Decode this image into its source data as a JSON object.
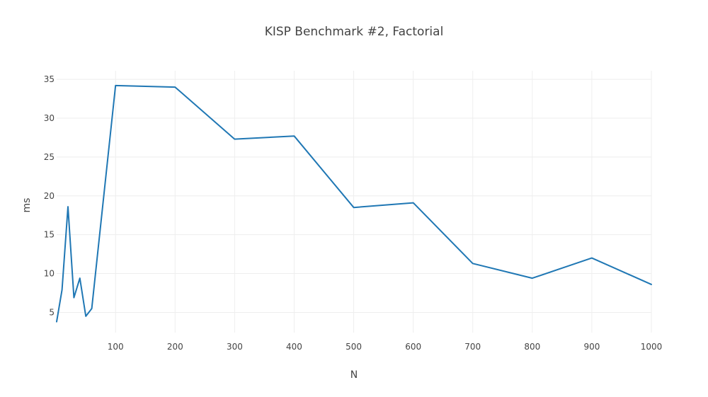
{
  "chart_data": {
    "type": "line",
    "title": "KISP Benchmark #2, Factorial",
    "xlabel": "N",
    "ylabel": "ms",
    "xlim": [
      1,
      1000
    ],
    "ylim": [
      2.4,
      36.1
    ],
    "xticks": [
      100,
      200,
      300,
      400,
      500,
      600,
      700,
      800,
      900,
      1000
    ],
    "yticks": [
      5,
      10,
      15,
      20,
      25,
      30,
      35
    ],
    "grid": true,
    "legend": "none",
    "series": [
      {
        "color": "#1f77b4",
        "x": [
          1,
          10,
          20,
          30,
          40,
          50,
          60,
          100,
          200,
          300,
          400,
          500,
          600,
          700,
          800,
          900,
          1000
        ],
        "y": [
          3.8,
          7.9,
          18.6,
          6.9,
          9.4,
          4.5,
          5.5,
          34.2,
          34.0,
          27.3,
          27.7,
          18.5,
          19.1,
          11.3,
          9.4,
          12.0,
          8.6
        ]
      }
    ]
  }
}
